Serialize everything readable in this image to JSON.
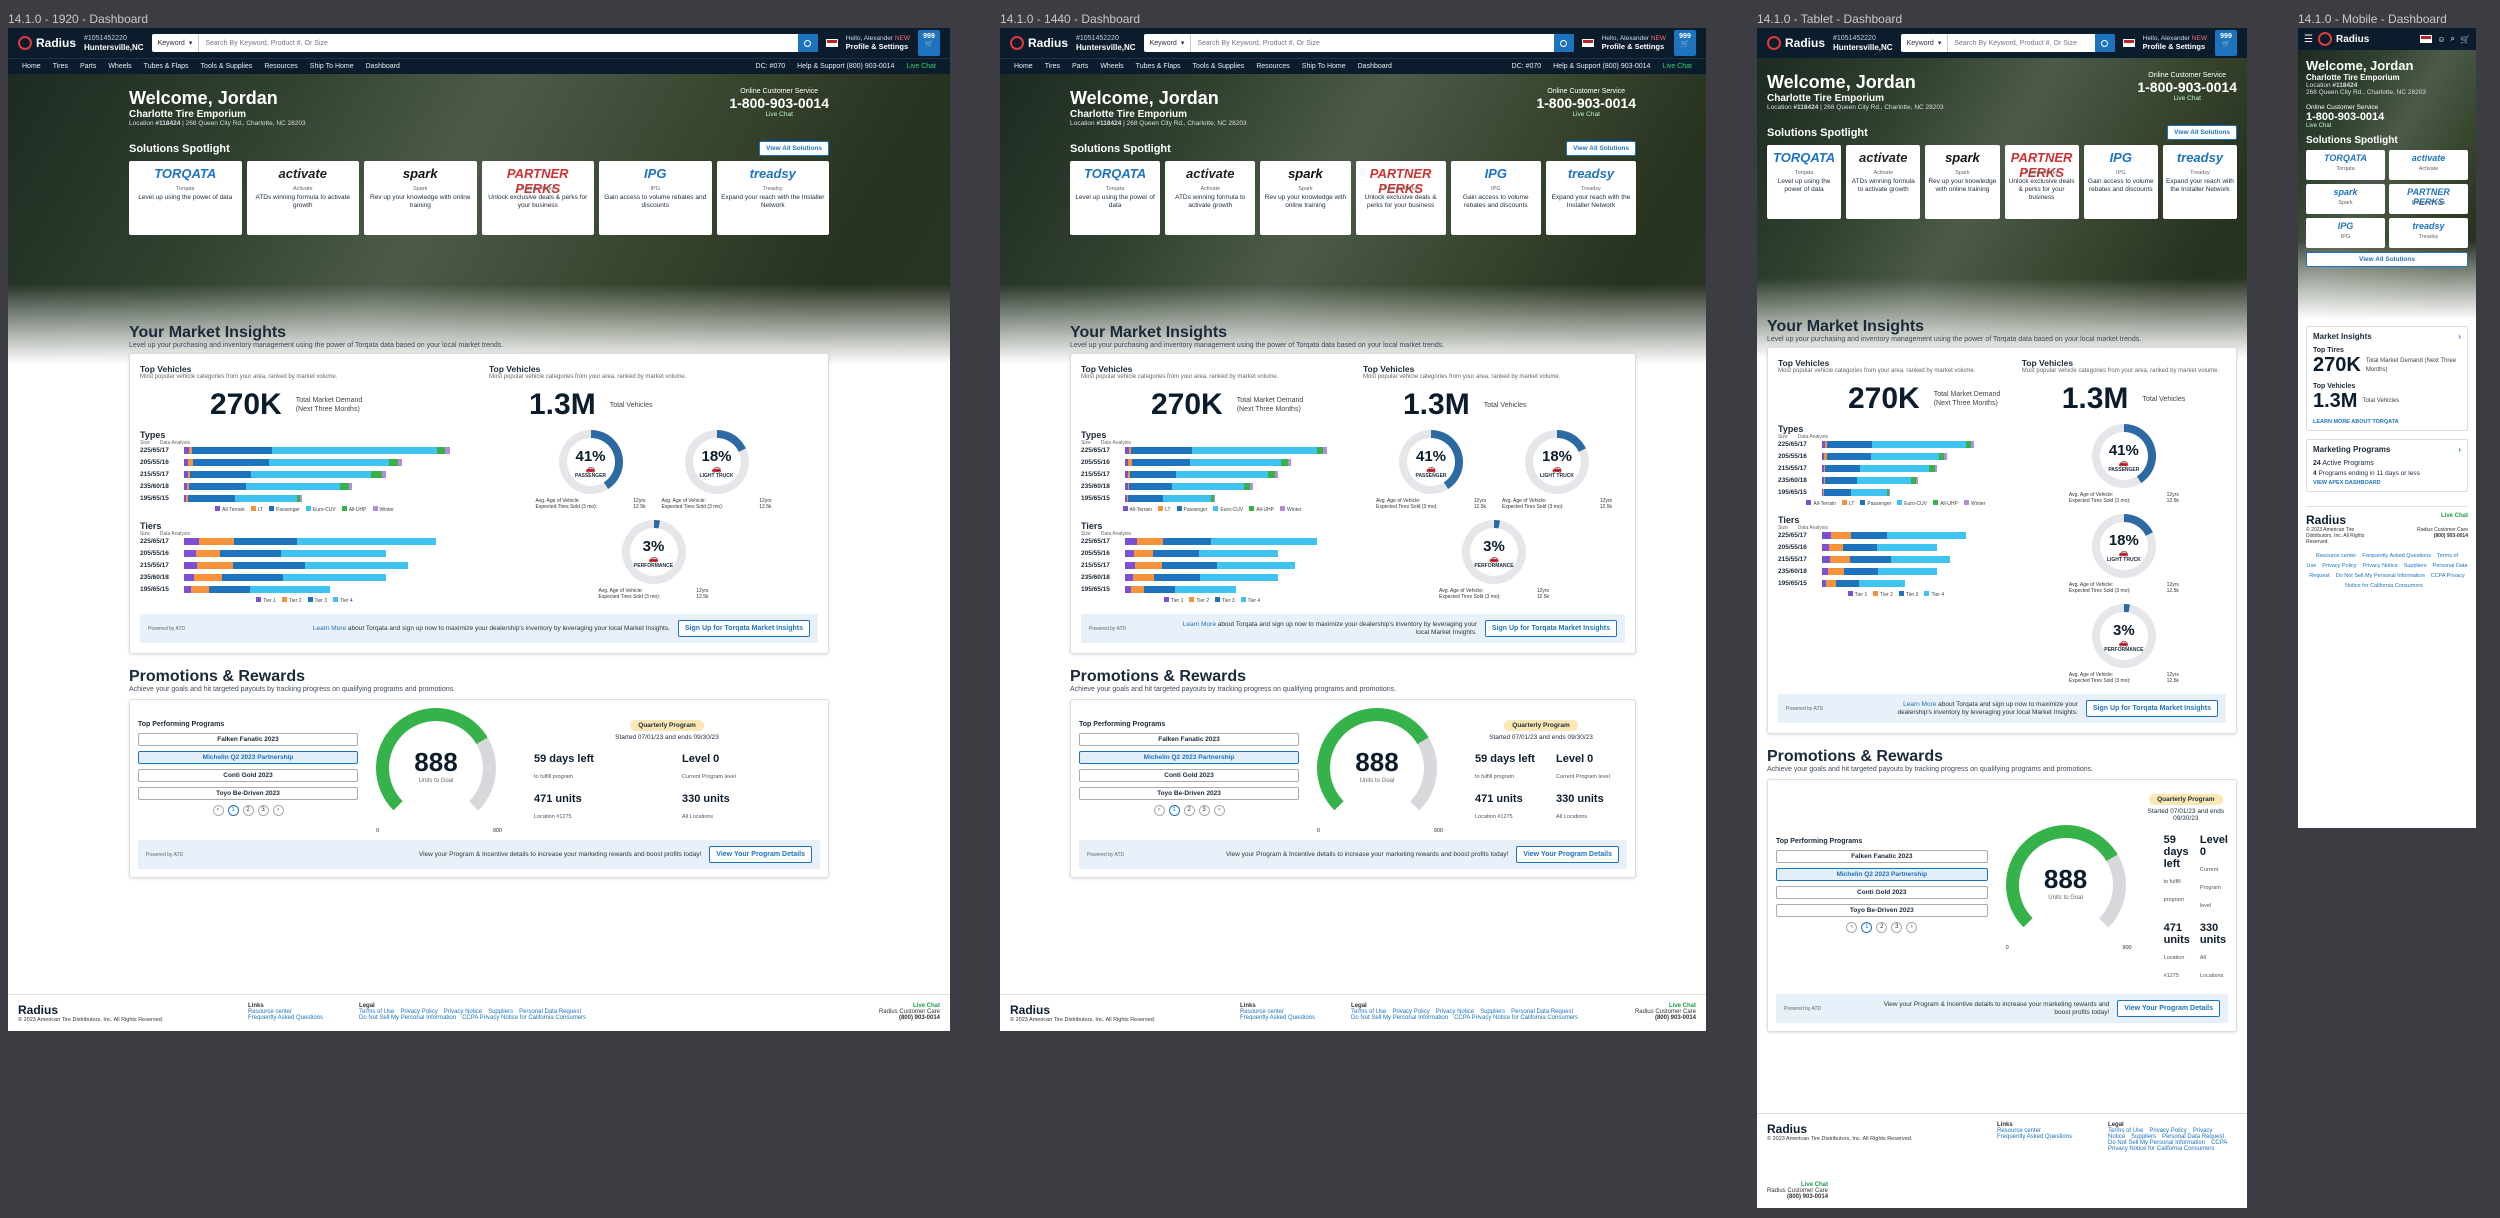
{
  "frames": {
    "f1920": "14.1.0 - 1920 - Dashboard",
    "f1440": "14.1.0 - 1440 - Dashboard",
    "tablet": "14.1.0 - Tablet - Dashboard",
    "mobile": "14.1.0 - Mobile - Dashboard"
  },
  "header": {
    "logo": "Radius",
    "acct": "#1051452220",
    "city": "Huntersville,NC",
    "kw": "Keyword",
    "placeholder": "Search By Keyword, Product #, Or Size",
    "hello": "Hello, Alexander",
    "new": "NEW",
    "profile": "Profile & Settings",
    "cart": "999"
  },
  "nav": {
    "items": [
      "Home",
      "Tires",
      "Parts",
      "Wheels",
      "Tubes & Flaps",
      "Tools & Supplies",
      "Resources",
      "Ship To Home",
      "Dashboard"
    ],
    "dc": "DC: #070",
    "help": "Help & Support (800) 903-0014",
    "chat": "Live Chat"
  },
  "hero": {
    "welcome": "Welcome, Jordan",
    "shop": "Charlotte Tire Emporium",
    "location_label": "Location",
    "location_num": "#118424",
    "address": "268 Queen City Rd., Charlotte, NC 28203",
    "ocs_label": "Online Customer Service",
    "phone": "1-800-903-0014",
    "chat": "Live Chat"
  },
  "solutions": {
    "title": "Solutions Spotlight",
    "view_all": "View All Solutions",
    "cards": [
      {
        "logo": "TORQATA",
        "name": "Torqata",
        "desc": "Level up using the power of data"
      },
      {
        "logo": "activate",
        "name": "Activate",
        "desc": "ATDs winning formula to activate growth"
      },
      {
        "logo": "spark",
        "name": "Spark",
        "desc": "Rev up your knowledge with online training"
      },
      {
        "logo": "PARTNER PERKS",
        "name": "Partner Perks",
        "desc": "Unlock exclusive deals & perks for your business"
      },
      {
        "logo": "IPG",
        "name": "IPG",
        "desc": "Gain access to volume rebates and discounts"
      },
      {
        "logo": "treadsy",
        "name": "Treadsy",
        "desc": "Expand your reach with the Installer Network"
      }
    ]
  },
  "insights": {
    "title": "Your Market Insights",
    "subtitle": "Level up your purchasing and inventory management using the power of Torqata data based on your local market trends.",
    "left_title": "Top Vehicles",
    "left_sub": "Most popular vehicle categories from your area, ranked by market volume.",
    "left_big": "270K",
    "left_big_label": "Total Market Demand (Next Three Months)",
    "types_title": "Types",
    "tiers_title": "Tiers",
    "size_label": "Size",
    "data_label": "Data Analysis",
    "right_title": "Top Vehicles",
    "right_sub": "Most popular vehicle categories from your area, ranked by market volume.",
    "right_big": "1.3M",
    "right_big_label": "Total Vehicles",
    "sizes": [
      "225/65/17",
      "205/55/16",
      "215/55/17",
      "235/60/18",
      "195/65/15"
    ],
    "type_legend": [
      "All-Terrain",
      "LT",
      "Passenger",
      "Euro-CUV",
      "All-UHP",
      "Winter"
    ],
    "tier_legend": [
      "Tier 1",
      "Tier 2",
      "Tier 3",
      "Tier 4"
    ],
    "gauges": [
      {
        "pct": "41%",
        "label": "PASSENGER",
        "age": "12yrs",
        "sold": "12.5k",
        "value": 0.41
      },
      {
        "pct": "18%",
        "label": "LIGHT TRUCK",
        "age": "12yrs",
        "sold": "12.5k",
        "value": 0.18
      },
      {
        "pct": "3%",
        "label": "PERFORMANCE",
        "age": "12yrs",
        "sold": "12.5k",
        "value": 0.03
      }
    ],
    "age_label": "Avg. Age of Vehicle:",
    "sold_label": "Expected Tires Sold (3 mo):",
    "powered": "Powered by ATD",
    "learn_link": "Learn More",
    "learn_text": "about Torqata and sign up now to  maximize your dealership's inventory by leveraging your local Market Insights.",
    "signup": "Sign Up for Torqata Market Insights"
  },
  "promos": {
    "title": "Promotions & Rewards",
    "subtitle": "Achieve your goals and hit targeted payouts by tracking progress on qualifying programs and promotions.",
    "top_label": "Top Performing Programs",
    "programs": [
      "Falken Fanatic 2023",
      "Michelin Q2 2023 Partnership",
      "Conti Gold 2023",
      "Toyo Be-Driven 2023"
    ],
    "pages": [
      "1",
      "2",
      "3"
    ],
    "dial_value": "888",
    "dial_label": "Units to Goal",
    "dial_min": "0",
    "dial_max": "900",
    "dial_fill": 0.72,
    "badge": "Quarterly Program",
    "dates": "Started 07/01/23 and ends 09/30/23",
    "days": "59 days left",
    "days_sub": "to fulfill program",
    "level": "Level 0",
    "level_sub": "Current Program level",
    "units": "471 units",
    "units_sub": "Location #1275",
    "all": "330 units",
    "all_sub": "All Locations",
    "cta_text": "View your Program & Incentive details to increase your marketing rewards and boost profits today!",
    "cta_btn": "View Your Program Details",
    "powered": "Powered by ATD"
  },
  "footer": {
    "logo": "Radius",
    "copy": "© 2023 American Tire Distributors, Inc. All Rights Reserved.",
    "links_title": "Links",
    "links": [
      "Resource center",
      "Frequently Asked Questions"
    ],
    "legal_title": "Legal",
    "legal": [
      "Terms of Use",
      "Privacy Policy",
      "Privacy Notice",
      "Suppliers",
      "Personal Data Request",
      "Do Not Sell My Personal Information",
      "CCPA Privacy Notice for California Consumers"
    ],
    "chat": "Live Chat",
    "care": "Radius Customer Care",
    "phone": "(800) 903-0014"
  },
  "mobile": {
    "market": "Market Insights",
    "top_tires": "Top Tires",
    "top_vehicles": "Top Vehicles",
    "learn": "LEARN MORE ABOUT TORQATA",
    "marketing": "Marketing Programs",
    "active_n": "24",
    "active": "Active Programs",
    "ending_n": "4",
    "ending": "Programs ending in 11 days or less",
    "apex": "VIEW APEX DASHBOARD"
  },
  "colors": {
    "navy": "#0b1c2c",
    "blue": "#1e73be",
    "cyan": "#3fc3f0",
    "orange": "#f5923a",
    "purple": "#7b4fd6",
    "green": "#36b24a",
    "gauge": "#2d6aa3"
  }
}
